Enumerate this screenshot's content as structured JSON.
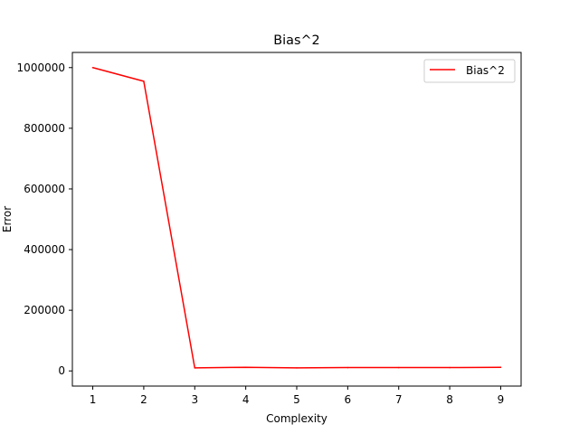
{
  "chart_data": {
    "type": "line",
    "title": "Bias^2",
    "xlabel": "Complexity",
    "ylabel": "Error",
    "x": [
      1,
      2,
      3,
      4,
      5,
      6,
      7,
      8,
      9
    ],
    "xticks": [
      "1",
      "2",
      "3",
      "4",
      "5",
      "6",
      "7",
      "8",
      "9"
    ],
    "yticks": [
      "0",
      "200000",
      "400000",
      "600000",
      "800000",
      "1000000"
    ],
    "ytick_values": [
      0,
      200000,
      400000,
      600000,
      800000,
      1000000
    ],
    "xlim": [
      0.6,
      9.4
    ],
    "ylim": [
      -50000,
      1050000
    ],
    "series": [
      {
        "name": "Bias^2",
        "color": "#ff0000",
        "values": [
          1000000,
          955000,
          10000,
          12000,
          10000,
          11000,
          11000,
          11000,
          12000
        ]
      }
    ],
    "legend_position": "top-right",
    "grid": false
  }
}
